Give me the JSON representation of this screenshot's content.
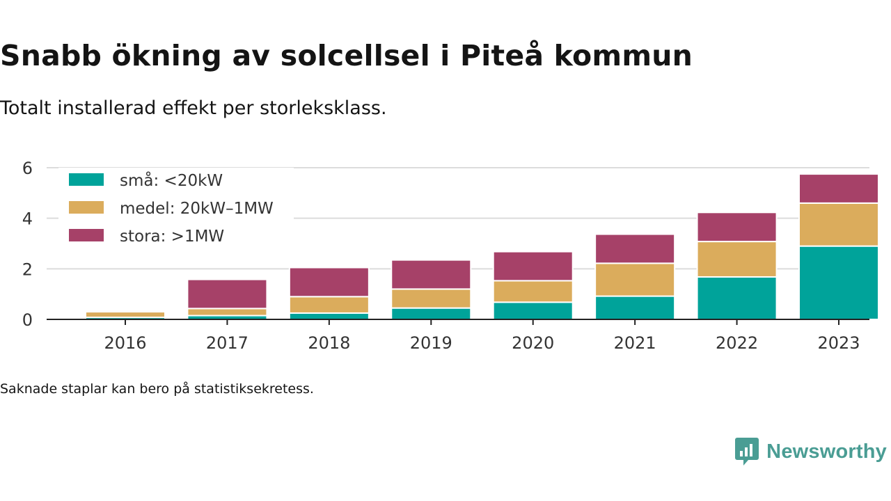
{
  "title": "Snabb ökning av solcellsel i Piteå kommun",
  "subtitle": "Totalt installerad effekt per storleksklass.",
  "note": "Saknade staplar kan bero på statistiksekretess.",
  "brand": {
    "name": "Newsworthy",
    "icon": "newsworthy-logo-icon",
    "color": "#4a9d94"
  },
  "chart_data": {
    "type": "bar",
    "stacked": true,
    "categories": [
      "2016",
      "2017",
      "2018",
      "2019",
      "2020",
      "2021",
      "2022",
      "2023"
    ],
    "series": [
      {
        "name": "små: <20kW",
        "color": "#00a39a",
        "values": [
          0.08,
          0.15,
          0.25,
          0.45,
          0.68,
          0.92,
          1.68,
          2.9
        ]
      },
      {
        "name": "medel: 20kW–1MW",
        "color": "#dbac5c",
        "values": [
          0.22,
          0.28,
          0.65,
          0.75,
          0.85,
          1.3,
          1.4,
          1.7
        ]
      },
      {
        "name": "stora: >1MW",
        "color": "#a64168",
        "values": [
          0,
          1.15,
          1.15,
          1.15,
          1.15,
          1.15,
          1.15,
          1.15
        ]
      }
    ],
    "ylim": [
      0,
      6
    ],
    "yticks": [
      "0",
      "2",
      "4",
      "6"
    ],
    "ytick_values": [
      0,
      2,
      4,
      6
    ],
    "grid": true,
    "legend_position": "top-left",
    "xlabel": "",
    "ylabel": ""
  }
}
